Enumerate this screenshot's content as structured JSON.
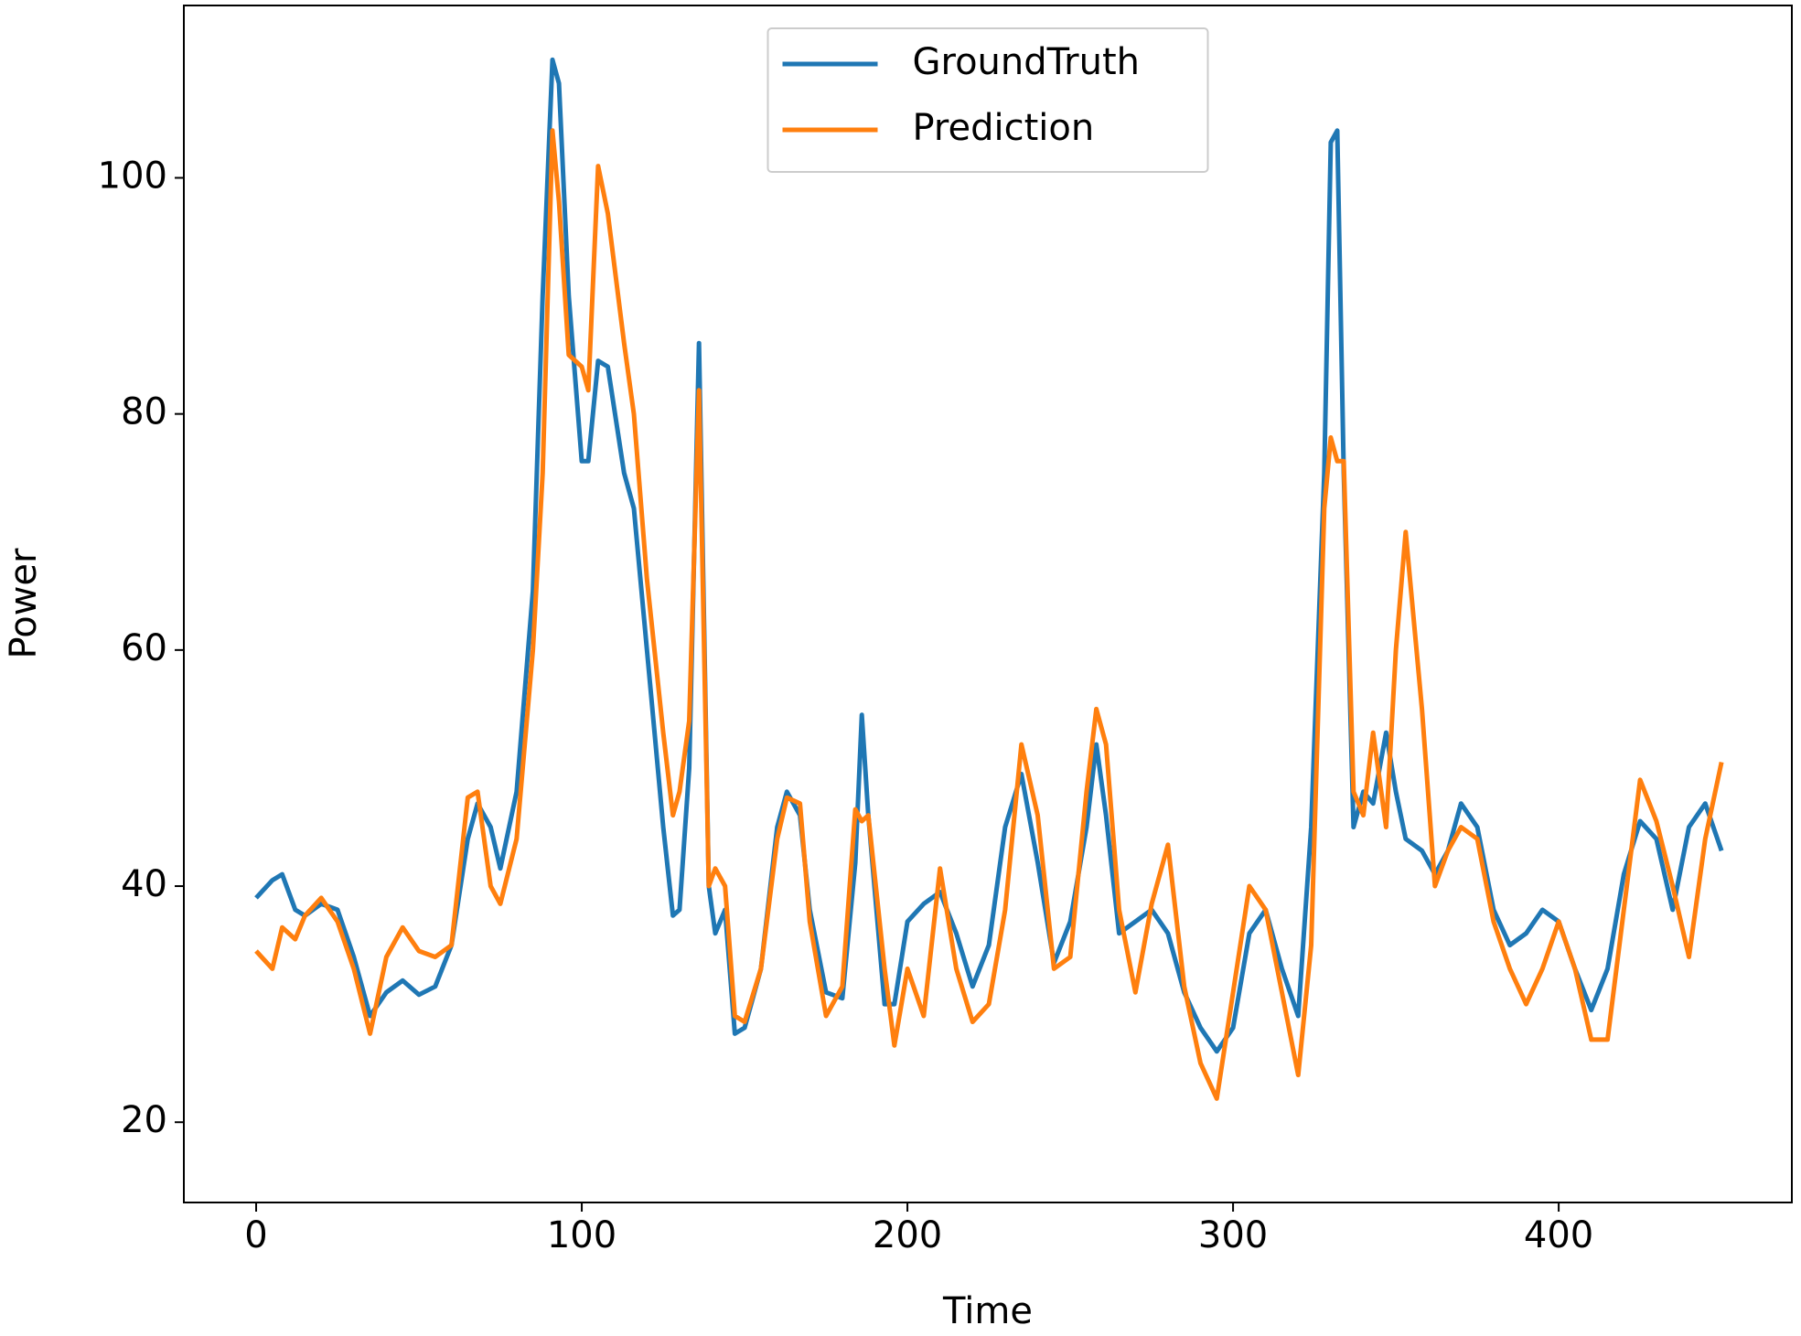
{
  "chart_data": {
    "type": "line",
    "x_label": "Time",
    "y_label": "Power",
    "xlim": [
      -22.2,
      471.6
    ],
    "ylim": [
      13.2,
      114.6
    ],
    "xticks": [
      0,
      100,
      200,
      300,
      400
    ],
    "yticks": [
      20,
      40,
      60,
      80,
      100
    ],
    "grid": false,
    "legend_position": "upper center",
    "x": [
      0,
      5,
      8,
      12,
      15,
      20,
      25,
      30,
      35,
      40,
      45,
      50,
      55,
      60,
      65,
      68,
      72,
      75,
      80,
      85,
      88,
      91,
      93,
      96,
      100,
      102,
      105,
      108,
      113,
      116,
      120,
      125,
      128,
      130,
      133,
      136,
      139,
      141,
      144,
      147,
      150,
      155,
      160,
      163,
      167,
      170,
      175,
      180,
      184,
      186,
      188,
      193,
      196,
      200,
      205,
      210,
      215,
      220,
      225,
      230,
      235,
      240,
      245,
      250,
      255,
      258,
      261,
      265,
      270,
      275,
      280,
      285,
      290,
      295,
      300,
      305,
      310,
      315,
      320,
      324,
      328,
      330,
      332,
      334,
      337,
      340,
      343,
      347,
      350,
      353,
      358,
      362,
      366,
      370,
      375,
      380,
      385,
      390,
      395,
      400,
      405,
      410,
      415,
      420,
      425,
      430,
      435,
      440,
      445,
      450
    ],
    "series": [
      {
        "name": "GroundTruth",
        "color": "#1f77b4",
        "values": [
          39,
          40.5,
          41,
          38,
          37.5,
          38.5,
          38,
          34,
          29,
          31,
          32,
          30.8,
          31.5,
          35,
          44,
          47,
          45,
          41.5,
          48,
          65,
          90,
          110,
          108,
          90,
          76,
          76,
          84.5,
          84,
          75,
          72,
          60,
          45,
          37.5,
          38,
          50,
          86,
          40,
          36,
          38,
          27.5,
          28,
          33,
          45,
          48,
          46,
          38,
          31,
          30.5,
          42,
          54.5,
          46,
          30,
          30,
          37,
          38.5,
          39.5,
          36,
          31.5,
          35,
          45,
          49.5,
          42,
          33.5,
          37,
          45,
          52,
          46,
          36,
          37,
          38,
          36,
          31,
          28,
          26,
          28,
          36,
          38,
          33,
          29,
          45,
          75,
          103,
          104,
          75,
          45,
          48,
          47,
          53,
          48,
          44,
          43,
          41,
          43,
          47,
          45,
          38,
          35,
          36,
          38,
          37,
          33,
          29.5,
          33,
          41,
          45.5,
          44,
          38,
          45,
          47,
          43
        ]
      },
      {
        "name": "Prediction",
        "color": "#ff7f0e",
        "values": [
          34.5,
          33,
          36.5,
          35.5,
          37.5,
          39,
          37,
          33,
          27.5,
          34,
          36.5,
          34.5,
          34,
          35,
          47.5,
          48,
          40,
          38.5,
          44,
          60,
          75,
          104,
          98,
          85,
          84,
          82,
          101,
          97,
          86,
          80,
          66,
          53,
          46,
          48,
          54,
          82,
          40,
          41.5,
          40,
          29,
          28.5,
          33,
          44,
          47.5,
          47,
          37,
          29,
          31.5,
          46.5,
          45.5,
          46,
          33,
          26.5,
          33,
          29,
          41.5,
          33,
          28.5,
          30,
          38,
          52,
          46,
          33,
          34,
          48,
          55,
          52,
          38,
          31,
          38.5,
          43.5,
          31.5,
          25,
          22,
          31,
          40,
          38,
          31,
          24,
          35,
          72,
          78,
          76,
          76,
          48,
          46,
          53,
          45,
          60,
          70,
          55,
          40,
          43,
          45,
          44,
          37,
          33,
          30,
          33,
          37,
          33,
          27,
          27,
          38,
          49,
          45.5,
          40,
          34,
          44,
          50.5
        ]
      }
    ]
  }
}
